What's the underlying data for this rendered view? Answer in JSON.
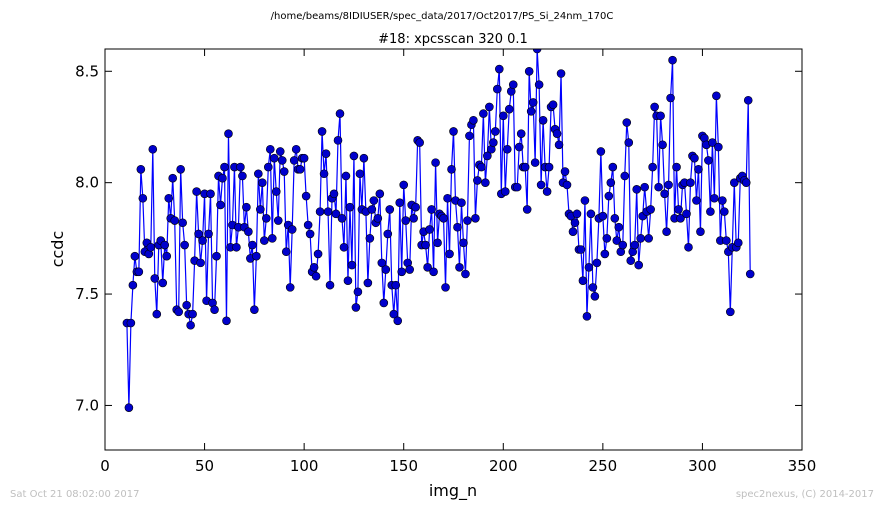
{
  "header": {
    "path": "/home/beams/8IDIUSER/spec_data/2017/Oct2017/PS_Si_24nm_170C"
  },
  "footer": {
    "timestamp": "Sat Oct 21 08:02:00 2017",
    "credit": "spec2nexus, (C) 2014-2017"
  },
  "chart_data": {
    "type": "line",
    "title": "#18: xpcsscan 320 0.1",
    "xlabel": "img_n",
    "ylabel": "ccdc",
    "xlim": [
      0,
      350
    ],
    "ylim": [
      6.8,
      8.6
    ],
    "xticks": [
      0,
      50,
      100,
      150,
      200,
      250,
      300,
      350
    ],
    "yticks": [
      7.0,
      7.5,
      8.0,
      8.5
    ],
    "grid": false,
    "line_color": "#0000ff",
    "marker_color": "#0000cc",
    "x_start": 11,
    "series": [
      {
        "values": [
          7.37,
          6.99,
          7.37,
          7.54,
          7.67,
          7.6,
          7.6,
          8.06,
          7.93,
          7.69,
          7.73,
          7.68,
          7.71,
          8.15,
          7.57,
          7.41,
          7.72,
          7.74,
          7.55,
          7.72,
          7.67,
          7.93,
          7.84,
          8.02,
          7.83,
          7.43,
          7.42,
          8.06,
          7.82,
          7.72,
          7.45,
          7.41,
          7.36,
          7.41,
          7.65,
          7.96,
          7.77,
          7.64,
          7.74,
          7.95,
          7.47,
          7.77,
          7.95,
          7.46,
          7.43,
          7.67,
          8.03,
          7.9,
          8.02,
          8.07,
          7.38,
          8.22,
          7.71,
          7.81,
          8.07,
          7.71,
          7.8,
          8.07,
          8.03,
          7.8,
          7.89,
          7.78,
          7.66,
          7.72,
          7.43,
          7.67,
          8.04,
          7.88,
          8.0,
          7.74,
          7.84,
          8.07,
          8.15,
          7.75,
          8.11,
          7.96,
          7.83,
          8.14,
          8.1,
          8.05,
          7.69,
          7.81,
          7.53,
          7.79,
          8.1,
          8.15,
          8.06,
          8.06,
          8.11,
          8.11,
          7.94,
          7.81,
          7.77,
          7.6,
          7.62,
          7.58,
          7.68,
          7.87,
          8.23,
          8.04,
          8.13,
          7.87,
          7.54,
          7.93,
          7.95,
          7.86,
          8.19,
          8.31,
          7.84,
          7.71,
          8.03,
          7.56,
          7.89,
          7.63,
          8.12,
          7.44,
          7.51,
          8.04,
          7.88,
          8.11,
          7.87,
          7.55,
          7.75,
          7.88,
          7.92,
          7.82,
          7.84,
          7.95,
          7.64,
          7.46,
          7.61,
          7.77,
          7.88,
          7.54,
          7.41,
          7.54,
          7.38,
          7.91,
          7.6,
          7.99,
          7.83,
          7.64,
          7.61,
          7.9,
          7.84,
          7.89,
          8.19,
          8.18,
          7.72,
          7.78,
          7.72,
          7.62,
          7.79,
          7.88,
          7.6,
          8.09,
          7.73,
          7.86,
          7.85,
          7.84,
          7.53,
          7.93,
          7.68,
          8.06,
          8.23,
          7.92,
          7.8,
          7.62,
          7.91,
          7.73,
          7.59,
          7.83,
          8.21,
          8.26,
          8.28,
          7.84,
          8.01,
          8.08,
          8.07,
          8.31,
          8.0,
          8.12,
          8.34,
          8.15,
          8.18,
          8.23,
          8.42,
          8.51,
          7.95,
          8.3,
          7.96,
          8.15,
          8.33,
          8.41,
          8.44,
          7.98,
          7.98,
          8.16,
          8.22,
          8.07,
          8.07,
          7.88,
          8.5,
          8.32,
          8.36,
          8.09,
          8.6,
          8.44,
          7.99,
          8.28,
          8.07,
          7.96,
          8.07,
          8.34,
          8.35,
          8.24,
          8.22,
          8.17,
          8.49,
          8.0,
          8.05,
          7.99,
          7.86,
          7.85,
          7.78,
          7.82,
          7.86,
          7.7,
          7.7,
          7.56,
          7.92,
          7.4,
          7.62,
          7.86,
          7.53,
          7.49,
          7.64,
          7.84,
          8.14,
          7.85,
          7.68,
          7.75,
          7.94,
          8.0,
          8.07,
          7.84,
          7.74,
          7.8,
          7.69,
          7.72,
          8.03,
          8.27,
          8.18,
          7.65,
          7.69,
          7.72,
          7.97,
          7.63,
          7.75,
          7.85,
          7.98,
          7.87,
          7.75,
          7.88,
          8.07,
          8.34,
          8.3,
          7.98,
          8.3,
          8.17,
          7.95,
          7.78,
          7.99,
          8.38,
          8.55,
          7.84,
          8.07,
          7.88,
          7.84,
          7.99,
          8.0,
          7.86,
          7.71,
          8.0,
          8.12,
          8.11,
          7.92,
          8.06,
          7.78,
          8.21,
          8.2,
          8.17,
          8.1,
          7.87,
          8.18,
          7.93,
          8.39,
          8.16,
          7.74,
          7.92,
          7.87,
          7.74,
          7.69,
          7.42,
          7.71,
          8.0,
          7.71,
          7.73,
          8.02,
          8.03,
          8.01,
          8.0,
          8.37,
          7.59
        ]
      }
    ]
  }
}
